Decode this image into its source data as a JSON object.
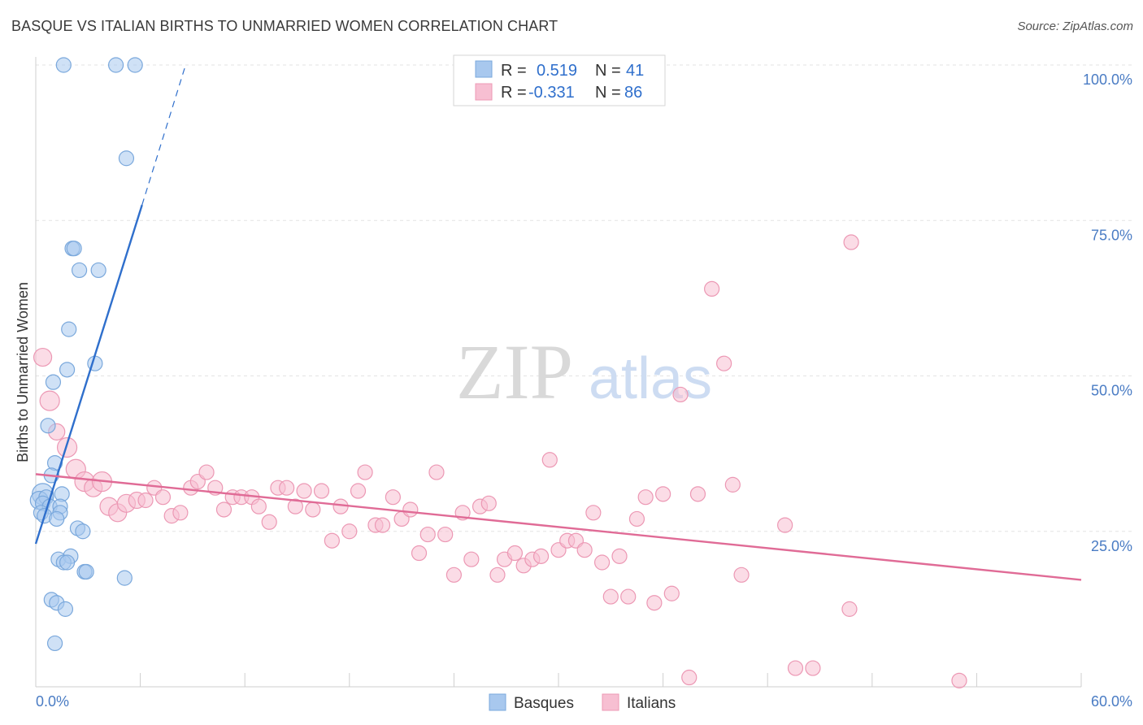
{
  "title": "BASQUE VS ITALIAN BIRTHS TO UNMARRIED WOMEN CORRELATION CHART",
  "source": "Source: ZipAtlas.com",
  "watermark": {
    "zip": "ZIP",
    "atlas": "atlas"
  },
  "chart_data": {
    "type": "scatter",
    "ylabel": "Births to Unmarried Women",
    "xlim": [
      0,
      60
    ],
    "ylim": [
      0,
      100
    ],
    "y_ticks": [
      {
        "value": 25,
        "label": "25.0%"
      },
      {
        "value": 50,
        "label": "50.0%"
      },
      {
        "value": 75,
        "label": "75.0%"
      },
      {
        "value": 100,
        "label": "100.0%"
      }
    ],
    "x_tick_labels": [
      {
        "value": 0,
        "label": "0.0%"
      },
      {
        "value": 60,
        "label": "60.0%"
      }
    ],
    "legend": [
      {
        "r_label": "R =",
        "r_value": "0.519",
        "n_label": "N =",
        "n_value": "41"
      },
      {
        "r_label": "R =",
        "r_value": "-0.331",
        "n_label": "N =",
        "n_value": "86"
      }
    ],
    "series": [
      {
        "name": "Basques",
        "color": "#a8c8ee",
        "stroke": "#7aa8dc",
        "line_color": "#2f6fcc",
        "trend": {
          "x0": 0,
          "y0": 23.0,
          "x1": 6.1,
          "y1": 77.5,
          "dash_x1": 8.6,
          "dash_y1": 100.0
        },
        "points": [
          {
            "x": 1.6,
            "y": 100.0,
            "r": 9
          },
          {
            "x": 4.6,
            "y": 100.0,
            "r": 9
          },
          {
            "x": 5.7,
            "y": 100.0,
            "r": 9
          },
          {
            "x": 5.2,
            "y": 85.0,
            "r": 9
          },
          {
            "x": 2.1,
            "y": 70.5,
            "r": 9
          },
          {
            "x": 2.2,
            "y": 70.5,
            "r": 9
          },
          {
            "x": 2.5,
            "y": 67.0,
            "r": 9
          },
          {
            "x": 3.6,
            "y": 67.0,
            "r": 9
          },
          {
            "x": 1.9,
            "y": 57.5,
            "r": 9
          },
          {
            "x": 3.4,
            "y": 52.0,
            "r": 9
          },
          {
            "x": 1.8,
            "y": 51.0,
            "r": 9
          },
          {
            "x": 1.0,
            "y": 49.0,
            "r": 9
          },
          {
            "x": 0.7,
            "y": 42.0,
            "r": 9
          },
          {
            "x": 1.1,
            "y": 36.0,
            "r": 9
          },
          {
            "x": 0.9,
            "y": 34.0,
            "r": 9
          },
          {
            "x": 0.4,
            "y": 31.0,
            "r": 13
          },
          {
            "x": 0.2,
            "y": 30.0,
            "r": 11
          },
          {
            "x": 0.6,
            "y": 30.5,
            "r": 9
          },
          {
            "x": 1.5,
            "y": 31.0,
            "r": 9
          },
          {
            "x": 0.4,
            "y": 29.5,
            "r": 9
          },
          {
            "x": 0.8,
            "y": 29.0,
            "r": 9
          },
          {
            "x": 1.4,
            "y": 29.0,
            "r": 9
          },
          {
            "x": 0.3,
            "y": 28.0,
            "r": 9
          },
          {
            "x": 1.4,
            "y": 28.0,
            "r": 9
          },
          {
            "x": 0.5,
            "y": 27.5,
            "r": 9
          },
          {
            "x": 1.2,
            "y": 27.0,
            "r": 9
          },
          {
            "x": 2.4,
            "y": 25.5,
            "r": 9
          },
          {
            "x": 2.7,
            "y": 25.0,
            "r": 9
          },
          {
            "x": 1.3,
            "y": 20.5,
            "r": 9
          },
          {
            "x": 2.0,
            "y": 21.0,
            "r": 9
          },
          {
            "x": 1.6,
            "y": 20.0,
            "r": 9
          },
          {
            "x": 1.8,
            "y": 20.0,
            "r": 9
          },
          {
            "x": 2.8,
            "y": 18.5,
            "r": 9
          },
          {
            "x": 2.9,
            "y": 18.5,
            "r": 9
          },
          {
            "x": 5.1,
            "y": 17.5,
            "r": 9
          },
          {
            "x": 0.9,
            "y": 14.0,
            "r": 9
          },
          {
            "x": 1.2,
            "y": 13.5,
            "r": 9
          },
          {
            "x": 1.7,
            "y": 12.5,
            "r": 9
          },
          {
            "x": 1.1,
            "y": 7.0,
            "r": 9
          }
        ]
      },
      {
        "name": "Italians",
        "color": "#f7bfd2",
        "stroke": "#ec98b4",
        "line_color": "#e06b96",
        "trend": {
          "x0": 0,
          "y0": 34.2,
          "x1": 60,
          "y1": 17.2
        },
        "points": [
          {
            "x": 0.4,
            "y": 53.0,
            "r": 11
          },
          {
            "x": 0.8,
            "y": 46.0,
            "r": 12
          },
          {
            "x": 1.2,
            "y": 41.0,
            "r": 10
          },
          {
            "x": 1.8,
            "y": 38.5,
            "r": 12
          },
          {
            "x": 2.3,
            "y": 35.0,
            "r": 12
          },
          {
            "x": 2.8,
            "y": 33.0,
            "r": 12
          },
          {
            "x": 3.3,
            "y": 32.0,
            "r": 11
          },
          {
            "x": 3.8,
            "y": 33.0,
            "r": 12
          },
          {
            "x": 4.2,
            "y": 29.0,
            "r": 11
          },
          {
            "x": 4.7,
            "y": 28.0,
            "r": 11
          },
          {
            "x": 5.2,
            "y": 29.5,
            "r": 11
          },
          {
            "x": 5.8,
            "y": 30.0,
            "r": 10
          },
          {
            "x": 6.3,
            "y": 30.0,
            "r": 9
          },
          {
            "x": 6.8,
            "y": 32.0,
            "r": 9
          },
          {
            "x": 7.3,
            "y": 30.5,
            "r": 9
          },
          {
            "x": 7.8,
            "y": 27.5,
            "r": 9
          },
          {
            "x": 8.3,
            "y": 28.0,
            "r": 9
          },
          {
            "x": 8.9,
            "y": 32.0,
            "r": 9
          },
          {
            "x": 9.3,
            "y": 33.0,
            "r": 9
          },
          {
            "x": 9.8,
            "y": 34.5,
            "r": 9
          },
          {
            "x": 10.3,
            "y": 32.0,
            "r": 9
          },
          {
            "x": 10.8,
            "y": 28.5,
            "r": 9
          },
          {
            "x": 11.3,
            "y": 30.5,
            "r": 9
          },
          {
            "x": 11.8,
            "y": 30.5,
            "r": 9
          },
          {
            "x": 12.4,
            "y": 30.5,
            "r": 9
          },
          {
            "x": 12.8,
            "y": 29.0,
            "r": 9
          },
          {
            "x": 13.4,
            "y": 26.5,
            "r": 9
          },
          {
            "x": 13.9,
            "y": 32.0,
            "r": 9
          },
          {
            "x": 14.4,
            "y": 32.0,
            "r": 9
          },
          {
            "x": 14.9,
            "y": 29.0,
            "r": 9
          },
          {
            "x": 15.4,
            "y": 31.5,
            "r": 9
          },
          {
            "x": 15.9,
            "y": 28.5,
            "r": 9
          },
          {
            "x": 16.4,
            "y": 31.5,
            "r": 9
          },
          {
            "x": 17.0,
            "y": 23.5,
            "r": 9
          },
          {
            "x": 17.5,
            "y": 29.0,
            "r": 9
          },
          {
            "x": 18.0,
            "y": 25.0,
            "r": 9
          },
          {
            "x": 18.5,
            "y": 31.5,
            "r": 9
          },
          {
            "x": 18.9,
            "y": 34.5,
            "r": 9
          },
          {
            "x": 19.5,
            "y": 26.0,
            "r": 9
          },
          {
            "x": 19.9,
            "y": 26.0,
            "r": 9
          },
          {
            "x": 20.5,
            "y": 30.5,
            "r": 9
          },
          {
            "x": 21.0,
            "y": 27.0,
            "r": 9
          },
          {
            "x": 21.5,
            "y": 28.5,
            "r": 9
          },
          {
            "x": 22.0,
            "y": 21.5,
            "r": 9
          },
          {
            "x": 22.5,
            "y": 24.5,
            "r": 9
          },
          {
            "x": 23.0,
            "y": 34.5,
            "r": 9
          },
          {
            "x": 23.5,
            "y": 24.5,
            "r": 9
          },
          {
            "x": 24.0,
            "y": 18.0,
            "r": 9
          },
          {
            "x": 24.5,
            "y": 28.0,
            "r": 9
          },
          {
            "x": 25.0,
            "y": 20.5,
            "r": 9
          },
          {
            "x": 25.5,
            "y": 29.0,
            "r": 9
          },
          {
            "x": 26.0,
            "y": 29.5,
            "r": 9
          },
          {
            "x": 26.5,
            "y": 18.0,
            "r": 9
          },
          {
            "x": 26.9,
            "y": 20.5,
            "r": 9
          },
          {
            "x": 27.5,
            "y": 21.5,
            "r": 9
          },
          {
            "x": 28.0,
            "y": 19.5,
            "r": 9
          },
          {
            "x": 28.5,
            "y": 20.5,
            "r": 9
          },
          {
            "x": 29.0,
            "y": 21.0,
            "r": 9
          },
          {
            "x": 29.5,
            "y": 36.5,
            "r": 9
          },
          {
            "x": 30.0,
            "y": 22.0,
            "r": 9
          },
          {
            "x": 30.5,
            "y": 23.5,
            "r": 9
          },
          {
            "x": 31.0,
            "y": 23.5,
            "r": 9
          },
          {
            "x": 31.5,
            "y": 22.0,
            "r": 9
          },
          {
            "x": 32.0,
            "y": 28.0,
            "r": 9
          },
          {
            "x": 32.5,
            "y": 20.0,
            "r": 9
          },
          {
            "x": 33.0,
            "y": 14.5,
            "r": 9
          },
          {
            "x": 33.5,
            "y": 21.0,
            "r": 9
          },
          {
            "x": 34.0,
            "y": 14.5,
            "r": 9
          },
          {
            "x": 34.5,
            "y": 27.0,
            "r": 9
          },
          {
            "x": 35.0,
            "y": 30.5,
            "r": 9
          },
          {
            "x": 35.5,
            "y": 13.5,
            "r": 9
          },
          {
            "x": 36.0,
            "y": 31.0,
            "r": 9
          },
          {
            "x": 36.5,
            "y": 15.0,
            "r": 9
          },
          {
            "x": 37.0,
            "y": 47.0,
            "r": 9
          },
          {
            "x": 37.5,
            "y": 1.5,
            "r": 9
          },
          {
            "x": 38.0,
            "y": 31.0,
            "r": 9
          },
          {
            "x": 38.8,
            "y": 64.0,
            "r": 9
          },
          {
            "x": 39.5,
            "y": 52.0,
            "r": 9
          },
          {
            "x": 40.0,
            "y": 32.5,
            "r": 9
          },
          {
            "x": 40.5,
            "y": 18.0,
            "r": 9
          },
          {
            "x": 43.0,
            "y": 26.0,
            "r": 9
          },
          {
            "x": 43.6,
            "y": 3.0,
            "r": 9
          },
          {
            "x": 44.6,
            "y": 3.0,
            "r": 9
          },
          {
            "x": 46.7,
            "y": 12.5,
            "r": 9
          },
          {
            "x": 46.8,
            "y": 71.5,
            "r": 9
          },
          {
            "x": 53.0,
            "y": 1.0,
            "r": 9
          }
        ]
      }
    ]
  },
  "bottom_legend": [
    {
      "label": "Basques"
    },
    {
      "label": "Italians"
    }
  ]
}
